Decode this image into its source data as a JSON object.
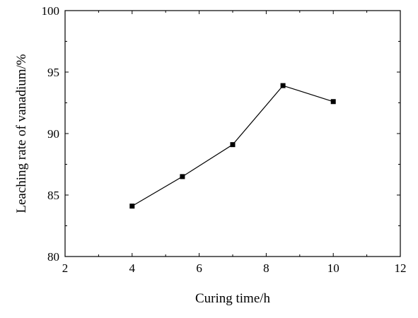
{
  "chart_data": {
    "type": "line",
    "xlabel": "Curing time/h",
    "ylabel": "Leaching rate of vanadium/%",
    "xlim": [
      2,
      12
    ],
    "ylim": [
      80,
      100
    ],
    "xticks": [
      2,
      4,
      6,
      8,
      10,
      12
    ],
    "yticks": [
      80,
      85,
      90,
      95,
      100
    ],
    "grid": false,
    "marker": "square",
    "colors": {
      "series": "#000000",
      "axis": "#000000"
    },
    "series": [
      {
        "x": [
          4,
          5.5,
          7,
          8.5,
          10
        ],
        "values": [
          84.1,
          86.5,
          89.1,
          93.9,
          92.6
        ]
      }
    ]
  }
}
